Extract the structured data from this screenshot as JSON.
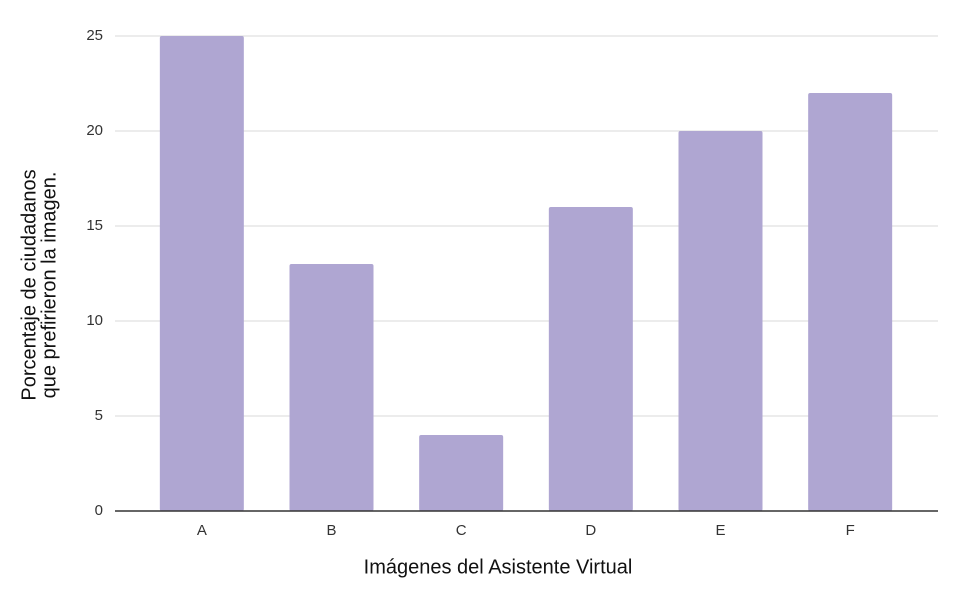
{
  "chart_data": {
    "type": "bar",
    "x_label": "Imágenes del Asistente Virtual",
    "y_label": [
      "Porcentaje de ciudadanos",
      "que prefirieron la imagen."
    ],
    "categories": [
      "A",
      "B",
      "C",
      "D",
      "E",
      "F"
    ],
    "values": [
      25,
      13,
      4,
      16,
      20,
      22
    ],
    "color": "#afa6d2",
    "ylim": [
      0,
      25
    ],
    "yticks": [
      0,
      5,
      10,
      15,
      20,
      25
    ],
    "grid": true
  }
}
